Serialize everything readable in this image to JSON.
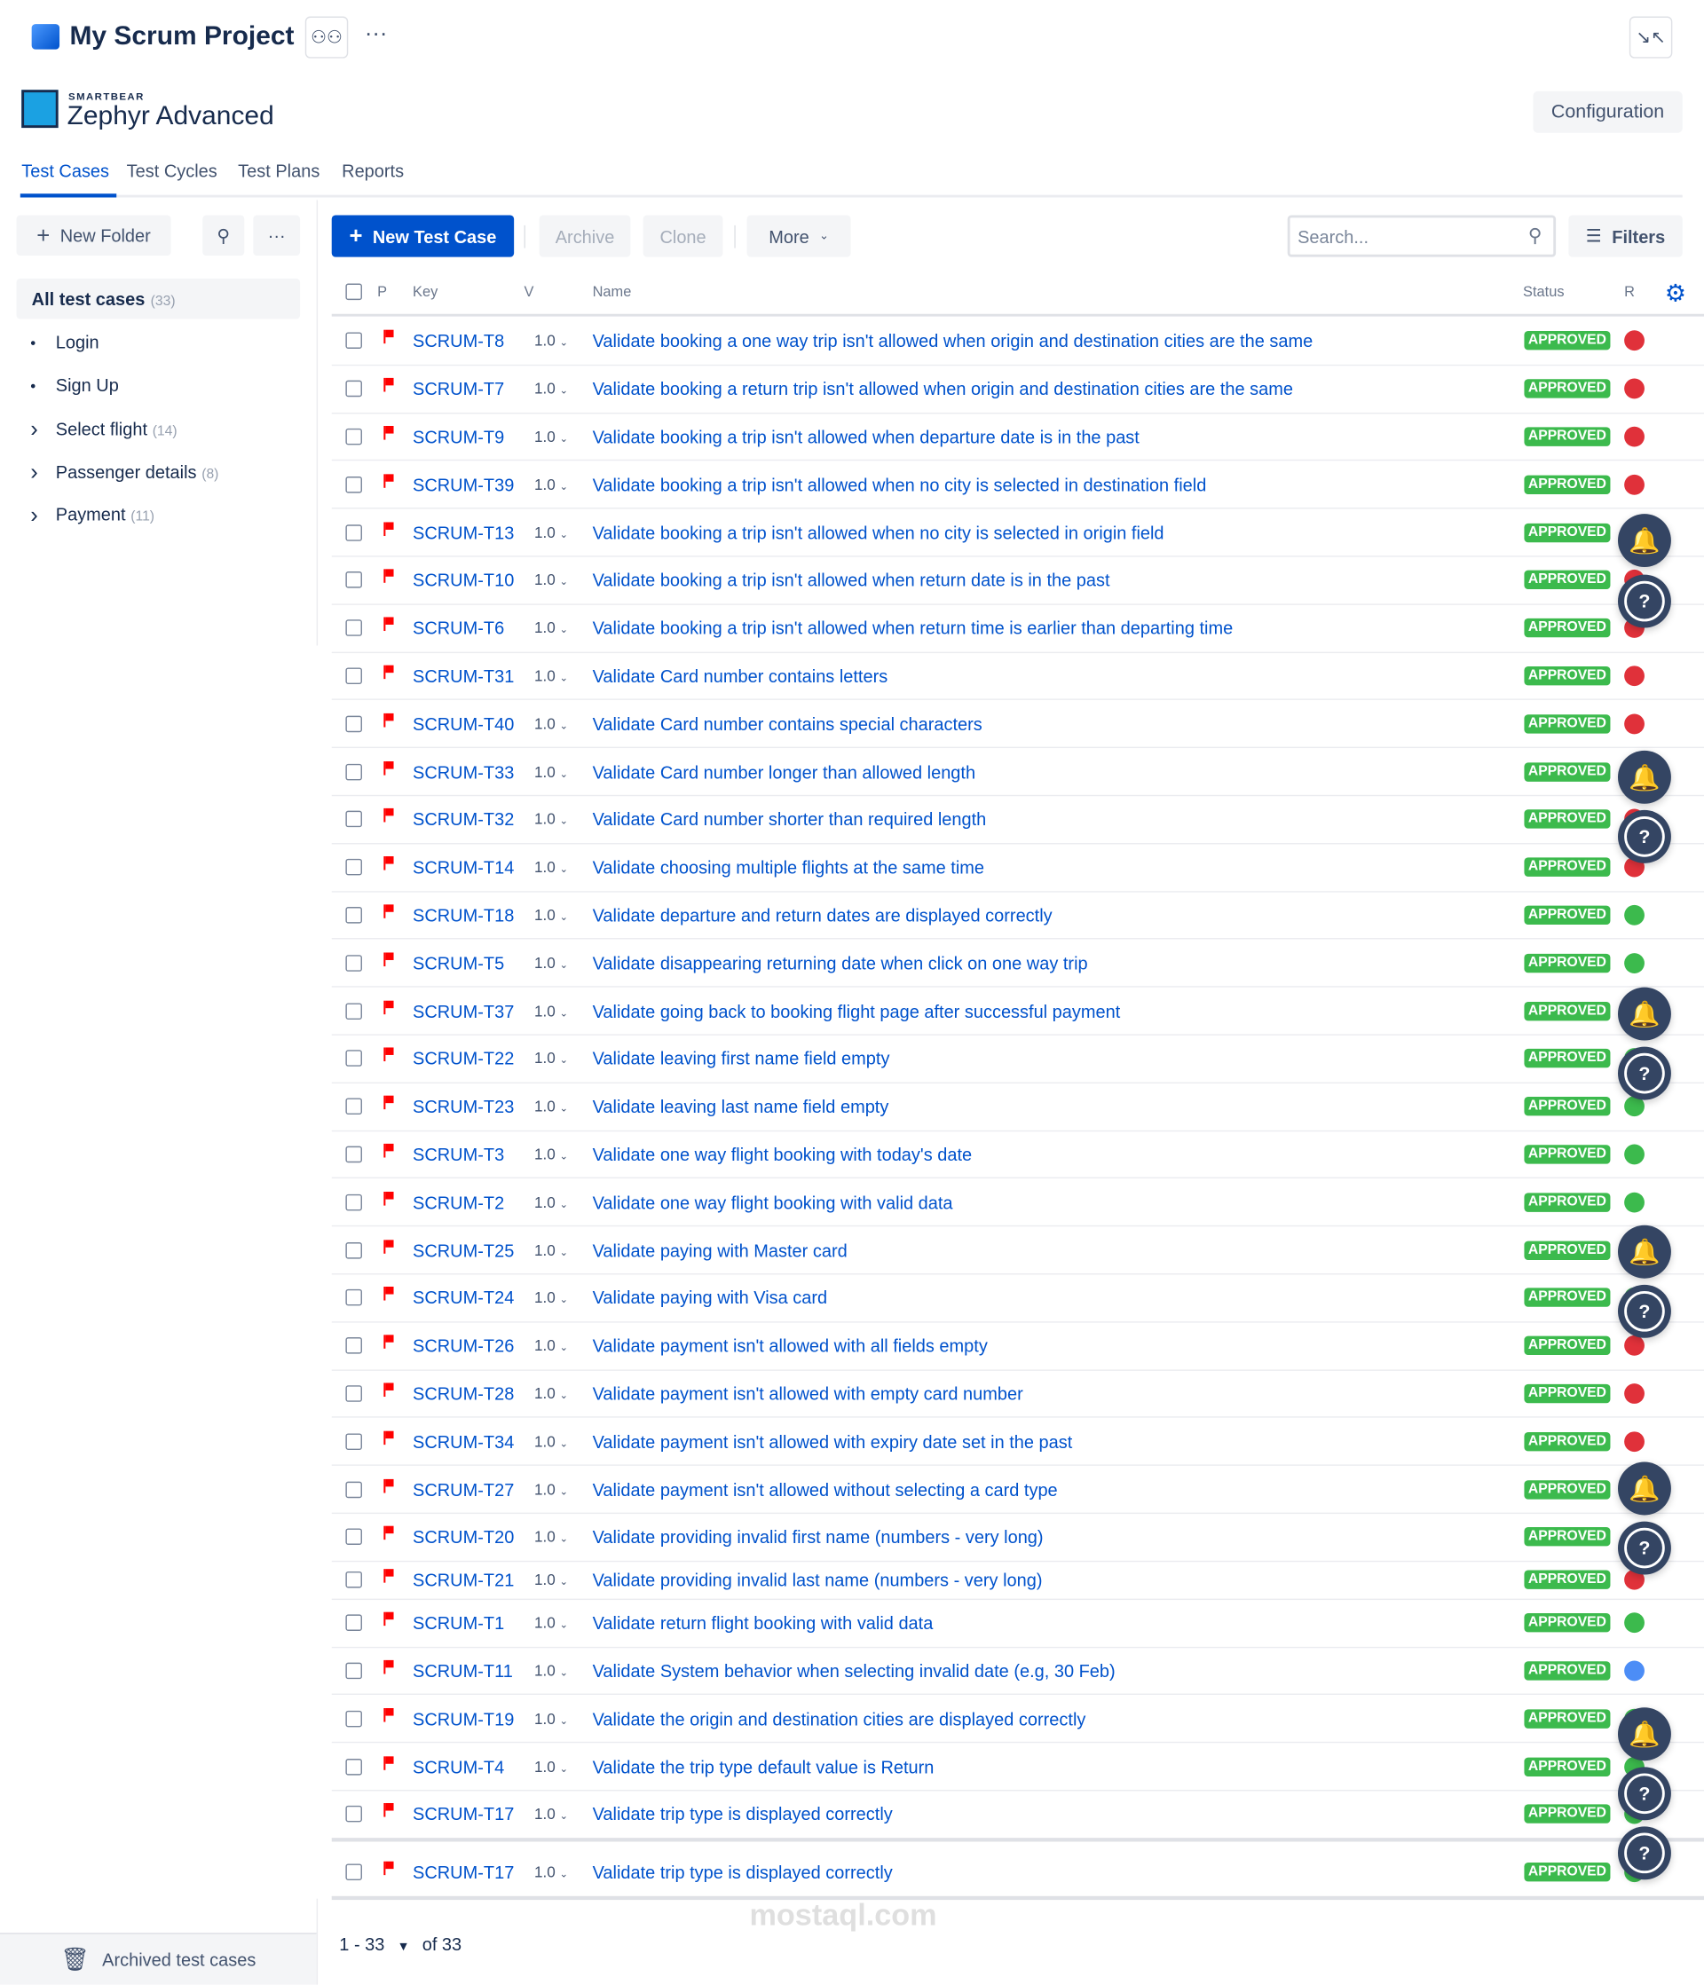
{
  "header": {
    "project_title": "My Scrum Project",
    "brand_top": "SMARTBEAR",
    "brand_name": "Zephyr Advanced",
    "configuration": "Configuration"
  },
  "tabs": [
    {
      "label": "Test Cases",
      "active": true
    },
    {
      "label": "Test Cycles"
    },
    {
      "label": "Test Plans"
    },
    {
      "label": "Reports"
    }
  ],
  "sidebar": {
    "new_folder": "New Folder",
    "all": {
      "label": "All test cases",
      "count": "(33)"
    },
    "folders": [
      {
        "label": "Login",
        "type": "bullet"
      },
      {
        "label": "Sign Up",
        "type": "bullet"
      },
      {
        "label": "Select flight",
        "count": "(14)",
        "type": "chevron"
      },
      {
        "label": "Passenger details",
        "count": "(8)",
        "type": "chevron"
      },
      {
        "label": "Payment",
        "count": "(11)",
        "type": "chevron"
      }
    ],
    "archived": "Archived test cases"
  },
  "toolbar": {
    "new_test_case": "New Test Case",
    "archive": "Archive",
    "clone": "Clone",
    "more": "More",
    "search_placeholder": "Search...",
    "filters": "Filters"
  },
  "columns": {
    "priority": "P",
    "key": "Key",
    "version": "V",
    "name": "Name",
    "status": "Status",
    "result": "R"
  },
  "colors": {
    "accent": "#0052cc",
    "approved": "#3cba4d",
    "fail": "#de350b",
    "pass": "#36b37e",
    "blocked": "#4c9aff",
    "priority_flag": "#ff0000"
  },
  "rows": [
    {
      "key": "SCRUM-T8",
      "version": "1.0",
      "name": "Validate booking a one way trip isn't allowed when origin and destination cities are the same",
      "status": "APPROVED",
      "result": "red"
    },
    {
      "key": "SCRUM-T7",
      "version": "1.0",
      "name": "Validate booking a return trip isn't allowed when origin and destination cities are the same",
      "status": "APPROVED",
      "result": "red"
    },
    {
      "key": "SCRUM-T9",
      "version": "1.0",
      "name": "Validate booking a trip isn't allowed when departure date is in the past",
      "status": "APPROVED",
      "result": "red"
    },
    {
      "key": "SCRUM-T39",
      "version": "1.0",
      "name": "Validate booking a trip isn't allowed when no city is selected in destination field",
      "status": "APPROVED",
      "result": "red"
    },
    {
      "key": "SCRUM-T13",
      "version": "1.0",
      "name": "Validate booking a trip isn't allowed when no city is selected in origin field",
      "status": "APPROVED",
      "result": "red"
    },
    {
      "key": "SCRUM-T10",
      "version": "1.0",
      "name": "Validate booking a trip isn't allowed when return date is in the past",
      "status": "APPROVED",
      "result": "red"
    },
    {
      "key": "SCRUM-T6",
      "version": "1.0",
      "name": "Validate booking a trip isn't allowed when return time is earlier than departing time",
      "status": "APPROVED",
      "result": "red"
    },
    {
      "key": "SCRUM-T31",
      "version": "1.0",
      "name": "Validate Card number contains letters",
      "status": "APPROVED",
      "result": "red"
    },
    {
      "key": "SCRUM-T40",
      "version": "1.0",
      "name": "Validate Card number contains special characters",
      "status": "APPROVED",
      "result": "red"
    },
    {
      "key": "SCRUM-T33",
      "version": "1.0",
      "name": "Validate Card number longer than allowed length",
      "status": "APPROVED",
      "result": "red"
    },
    {
      "key": "SCRUM-T32",
      "version": "1.0",
      "name": "Validate Card number shorter than required length",
      "status": "APPROVED",
      "result": "red"
    },
    {
      "key": "SCRUM-T14",
      "version": "1.0",
      "name": "Validate choosing multiple flights at the same time",
      "status": "APPROVED",
      "result": "red"
    },
    {
      "key": "SCRUM-T18",
      "version": "1.0",
      "name": "Validate departure and return dates are displayed correctly",
      "status": "APPROVED",
      "result": "green"
    },
    {
      "key": "SCRUM-T5",
      "version": "1.0",
      "name": "Validate disappearing returning date when click on one way trip",
      "status": "APPROVED",
      "result": "green"
    },
    {
      "key": "SCRUM-T37",
      "version": "1.0",
      "name": "Validate going back to booking flight page after successful payment",
      "status": "APPROVED",
      "result": "green"
    },
    {
      "key": "SCRUM-T22",
      "version": "1.0",
      "name": "Validate leaving first name field empty",
      "status": "APPROVED",
      "result": "green"
    },
    {
      "key": "SCRUM-T23",
      "version": "1.0",
      "name": "Validate leaving last name field empty",
      "status": "APPROVED",
      "result": "green"
    },
    {
      "key": "SCRUM-T3",
      "version": "1.0",
      "name": "Validate one way flight booking with today's date",
      "status": "APPROVED",
      "result": "green"
    },
    {
      "key": "SCRUM-T2",
      "version": "1.0",
      "name": "Validate one way flight booking with valid data",
      "status": "APPROVED",
      "result": "green"
    },
    {
      "key": "SCRUM-T25",
      "version": "1.0",
      "name": "Validate paying with Master card",
      "status": "APPROVED",
      "result": "green"
    },
    {
      "key": "SCRUM-T24",
      "version": "1.0",
      "name": "Validate paying with Visa card",
      "status": "APPROVED",
      "result": "green"
    },
    {
      "key": "SCRUM-T26",
      "version": "1.0",
      "name": "Validate payment isn't allowed with all fields empty",
      "status": "APPROVED",
      "result": "red"
    },
    {
      "key": "SCRUM-T28",
      "version": "1.0",
      "name": "Validate payment isn't allowed with empty card number",
      "status": "APPROVED",
      "result": "red"
    },
    {
      "key": "SCRUM-T34",
      "version": "1.0",
      "name": "Validate payment isn't allowed with expiry date set in the past",
      "status": "APPROVED",
      "result": "red"
    },
    {
      "key": "SCRUM-T27",
      "version": "1.0",
      "name": "Validate payment isn't allowed without selecting a card type",
      "status": "APPROVED",
      "result": "red"
    },
    {
      "key": "SCRUM-T20",
      "version": "1.0",
      "name": "Validate providing invalid first name (numbers - very long)",
      "status": "APPROVED",
      "result": "red"
    },
    {
      "key": "SCRUM-T21",
      "version": "1.0",
      "name": "Validate providing invalid last name (numbers - very long)",
      "status": "APPROVED",
      "result": "red"
    },
    {
      "key": "SCRUM-T1",
      "version": "1.0",
      "name": "Validate return flight booking with valid data",
      "status": "APPROVED",
      "result": "green"
    },
    {
      "key": "SCRUM-T11",
      "version": "1.0",
      "name": "Validate System behavior when selecting invalid date (e.g, 30 Feb)",
      "status": "APPROVED",
      "result": "blue"
    },
    {
      "key": "SCRUM-T19",
      "version": "1.0",
      "name": "Validate the origin and destination cities are displayed correctly",
      "status": "APPROVED",
      "result": "green"
    },
    {
      "key": "SCRUM-T4",
      "version": "1.0",
      "name": "Validate the trip type default value is Return",
      "status": "APPROVED",
      "result": "green"
    },
    {
      "key": "SCRUM-T17",
      "version": "1.0",
      "name": "Validate trip type is displayed correctly",
      "status": "APPROVED",
      "result": "green"
    }
  ],
  "sticky_row": {
    "key": "SCRUM-T17",
    "version": "1.0",
    "name": "Validate trip type is displayed correctly",
    "status": "APPROVED",
    "result": "green"
  },
  "pagination": {
    "range": "1 - 33",
    "of": "of 33"
  },
  "watermark": "mostaql.com"
}
